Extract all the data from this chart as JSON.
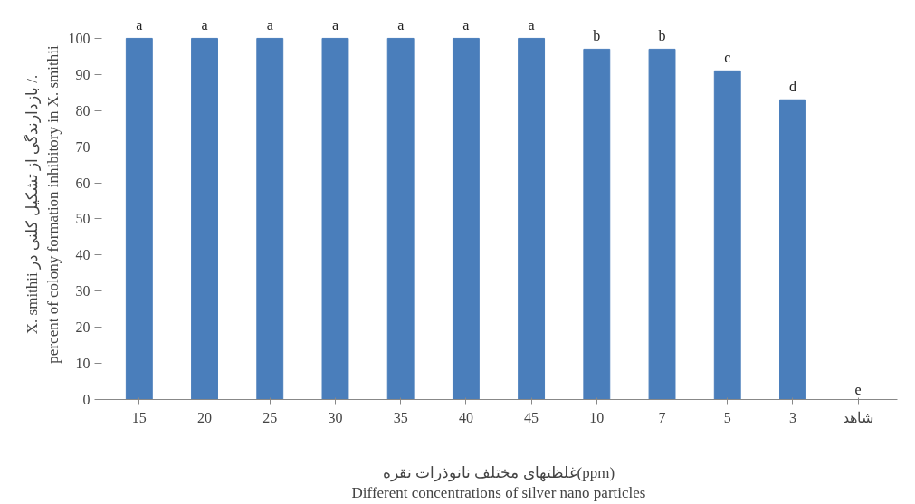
{
  "chart_data": {
    "type": "bar",
    "categories": [
      "15",
      "20",
      "25",
      "30",
      "35",
      "40",
      "45",
      "10",
      "7",
      "5",
      "3",
      "شاهد"
    ],
    "values": [
      100,
      100,
      100,
      100,
      100,
      100,
      100,
      97,
      97,
      91,
      83,
      0
    ],
    "value_labels": [
      "a",
      "a",
      "a",
      "a",
      "a",
      "a",
      "a",
      "b",
      "b",
      "c",
      "d",
      "e"
    ],
    "color": "#4a7ebb",
    "ylim": [
      0,
      100
    ],
    "yticks": [
      0,
      10,
      20,
      30,
      40,
      50,
      60,
      70,
      80,
      90,
      100
    ],
    "xlabel": "غلظتهای مختلف نانوذرات نقره(ppm)\nDifferent concentrations of silver nano particles",
    "ylabel": "X. smithii بازدارندگی از تشکیل کلنی در /.\npercent of colony formation inhibitory in X. smithii",
    "grid": false
  }
}
